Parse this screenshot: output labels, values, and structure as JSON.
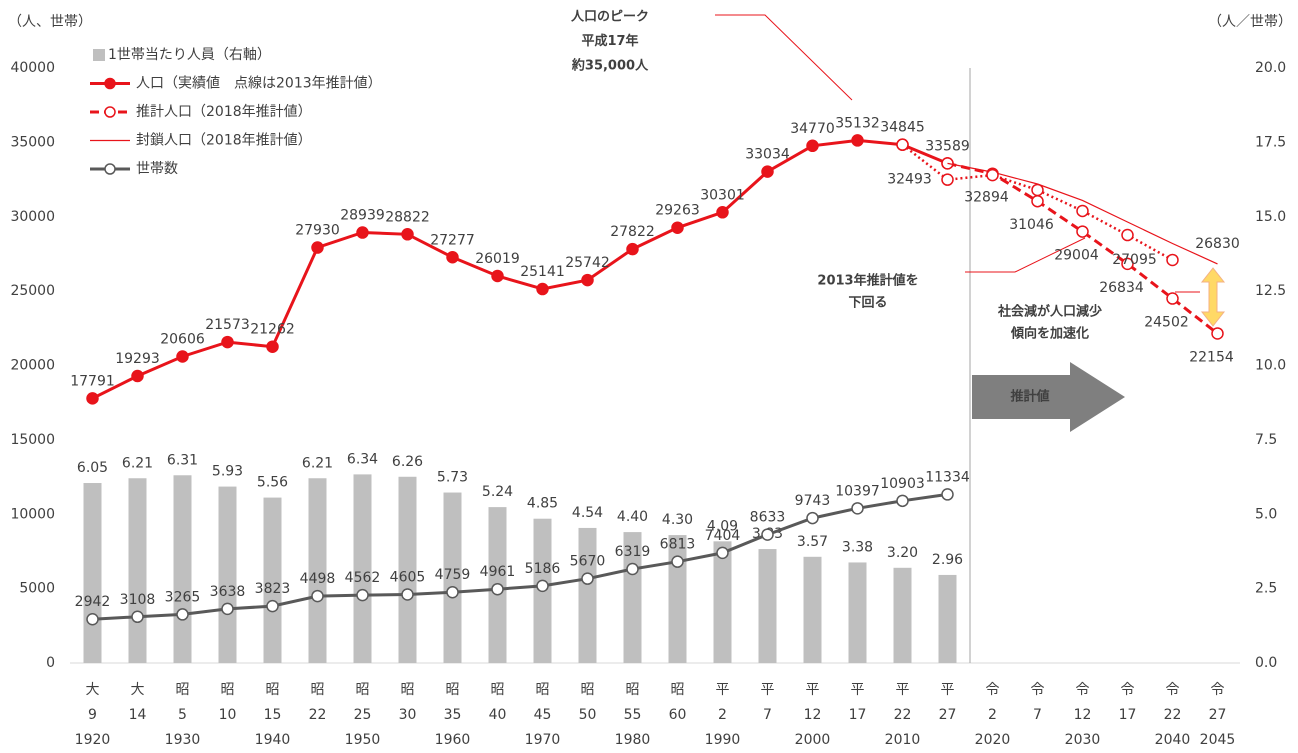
{
  "chart_data": {
    "type": "combo",
    "y_title": "（人、世帯）",
    "y2_title": "（人／世帯）",
    "categories": [
      [
        "大",
        "9",
        "1920"
      ],
      [
        "大",
        "14",
        null
      ],
      [
        "昭",
        "5",
        "1930"
      ],
      [
        "昭",
        "10",
        null
      ],
      [
        "昭",
        "15",
        "1940"
      ],
      [
        "昭",
        "22",
        null
      ],
      [
        "昭",
        "25",
        "1950"
      ],
      [
        "昭",
        "30",
        null
      ],
      [
        "昭",
        "35",
        "1960"
      ],
      [
        "昭",
        "40",
        null
      ],
      [
        "昭",
        "45",
        "1970"
      ],
      [
        "昭",
        "50",
        null
      ],
      [
        "昭",
        "55",
        "1980"
      ],
      [
        "昭",
        "60",
        null
      ],
      [
        "平",
        "2",
        "1990"
      ],
      [
        "平",
        "7",
        null
      ],
      [
        "平",
        "12",
        "2000"
      ],
      [
        "平",
        "17",
        null
      ],
      [
        "平",
        "22",
        "2010"
      ],
      [
        "平",
        "27",
        null
      ],
      [
        "令",
        "2",
        "2020"
      ],
      [
        "令",
        "7",
        null
      ],
      [
        "令",
        "12",
        "2030"
      ],
      [
        "令",
        "17",
        null
      ],
      [
        "令",
        "22",
        "2040"
      ],
      [
        "令",
        "27",
        "2045"
      ]
    ],
    "ylim": [
      0,
      40000
    ],
    "yticks": [
      0,
      5000,
      10000,
      15000,
      20000,
      25000,
      30000,
      35000,
      40000
    ],
    "y2lim": [
      0,
      20
    ],
    "y2ticks": [
      {
        "value": 0,
        "label": "0.0"
      },
      2.5,
      {
        "value": 5,
        "label": "5.0"
      },
      7.5,
      {
        "value": 10,
        "label": "10.0"
      },
      12.5,
      {
        "value": 15,
        "label": "15.0"
      },
      17.5,
      {
        "value": 20,
        "label": "20.0"
      }
    ],
    "legend": "top-left",
    "series": [
      {
        "name": "1世帯当たり人員（右軸）",
        "type": "bar",
        "axis": "y2",
        "color": "#bfbfbf",
        "values": [
          6.05,
          6.21,
          6.31,
          5.93,
          5.56,
          6.21,
          6.34,
          6.26,
          5.73,
          5.24,
          4.85,
          4.54,
          4.4,
          4.3,
          4.09,
          3.83,
          3.57,
          3.38,
          3.2,
          2.96,
          null,
          null,
          null,
          null,
          null,
          null
        ],
        "value_labels": [
          "6.05",
          "6.21",
          "6.31",
          "5.93",
          "5.56",
          "6.21",
          "6.34",
          "6.26",
          "5.73",
          "5.24",
          "4.85",
          "4.54",
          "4.40",
          "4.30",
          "4.09",
          "3.83",
          "3.57",
          "3.38",
          "3.20",
          "2.96",
          null,
          null,
          null,
          null,
          null,
          null
        ]
      },
      {
        "name": "人口（実績値　点線は2013年推計値）",
        "type": "line",
        "color": "#e8141b",
        "dash": "solid",
        "marker": "filled",
        "values": [
          17791,
          19293,
          20606,
          21573,
          21262,
          27930,
          28939,
          28822,
          27277,
          26019,
          25141,
          25742,
          27822,
          29263,
          30301,
          33034,
          34770,
          35132,
          34845,
          33589,
          null,
          null,
          null,
          null,
          null,
          null
        ],
        "value_labels": [
          "17791",
          "19293",
          "20606",
          "21573",
          "21262",
          "27930",
          "28939",
          "28822",
          "27277",
          "26019",
          "25141",
          "25742",
          "27822",
          "29263",
          "30301",
          "33034",
          "34770",
          "35132",
          "34845",
          "33589",
          null,
          null,
          null,
          null,
          null,
          null
        ]
      },
      {
        "name": "推計人口（2018年推計値）",
        "type": "line",
        "color": "#e8141b",
        "dash": "dash",
        "marker": "open",
        "values": [
          null,
          null,
          null,
          null,
          null,
          null,
          null,
          null,
          null,
          null,
          null,
          null,
          null,
          null,
          null,
          null,
          null,
          null,
          null,
          33589,
          32894,
          31046,
          29004,
          26834,
          24502,
          22154
        ],
        "value_labels": [
          null,
          null,
          null,
          null,
          null,
          null,
          null,
          null,
          null,
          null,
          null,
          null,
          null,
          null,
          null,
          null,
          null,
          null,
          null,
          null,
          "32894",
          "31046",
          "29004",
          "26834",
          "24502",
          "22154"
        ]
      },
      {
        "name": "封鎖人口（2018年推計値）",
        "type": "line",
        "color": "#e8141b",
        "dash": "thin",
        "marker": "none",
        "values": [
          null,
          null,
          null,
          null,
          null,
          null,
          null,
          null,
          null,
          null,
          null,
          null,
          null,
          null,
          null,
          null,
          null,
          null,
          null,
          33589,
          33000,
          32200,
          31100,
          29650,
          28200,
          26830
        ],
        "value_labels": [
          null,
          null,
          null,
          null,
          null,
          null,
          null,
          null,
          null,
          null,
          null,
          null,
          null,
          null,
          null,
          null,
          null,
          null,
          null,
          null,
          null,
          null,
          null,
          null,
          null,
          "26830"
        ]
      },
      {
        "name": "世帯数",
        "type": "line",
        "color": "#595959",
        "dash": "solid",
        "marker": "open",
        "values": [
          2942,
          3108,
          3265,
          3638,
          3823,
          4498,
          4562,
          4605,
          4759,
          4961,
          5186,
          5670,
          6319,
          6813,
          7404,
          8633,
          9743,
          10397,
          10903,
          11334,
          null,
          null,
          null,
          null,
          null,
          null
        ],
        "value_labels": [
          "2942",
          "3108",
          "3265",
          "3638",
          "3823",
          "4498",
          "4562",
          "4605",
          "4759",
          "4961",
          "5186",
          "5670",
          "6319",
          "6813",
          "7404",
          "8633",
          "9743",
          "10397",
          "10903",
          "11334",
          null,
          null,
          null,
          null,
          null,
          null
        ]
      },
      {
        "type": "line",
        "color": "#e8141b",
        "dash": "dot",
        "marker": "open",
        "values": [
          null,
          null,
          null,
          null,
          null,
          null,
          null,
          null,
          null,
          null,
          null,
          null,
          null,
          null,
          null,
          null,
          null,
          null,
          34845,
          32493,
          32800,
          31800,
          30390,
          28770,
          27095,
          null
        ],
        "value_labels": [
          null,
          null,
          null,
          null,
          null,
          null,
          null,
          null,
          null,
          null,
          null,
          null,
          null,
          null,
          null,
          null,
          null,
          null,
          null,
          "32493",
          null,
          null,
          null,
          null,
          "27095",
          null
        ]
      }
    ],
    "annotations": [
      {
        "lines": [
          "人口のピーク",
          "平成17年",
          "約35,000人"
        ]
      },
      {
        "lines": [
          "2013年推計値を",
          "下回る"
        ]
      },
      {
        "lines": [
          "社会減が人口減少",
          "傾向を加速化"
        ]
      },
      {
        "lines": [
          "推計値"
        ]
      }
    ]
  }
}
